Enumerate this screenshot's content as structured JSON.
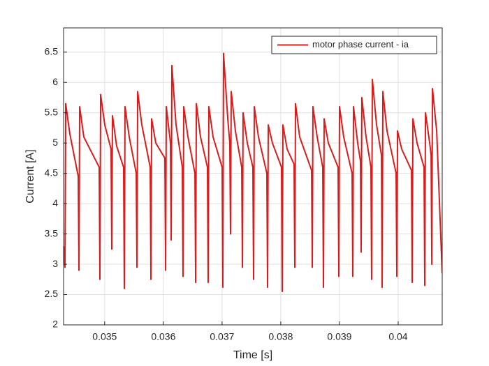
{
  "chart_data": {
    "type": "line",
    "xlabel": "Time [s]",
    "ylabel": "Current [A]",
    "x": [
      0.0343,
      0.034324,
      0.034336,
      0.034407,
      0.03455,
      0.034562,
      0.034574,
      0.034645,
      0.034907,
      0.034919,
      0.034931,
      0.035002,
      0.035109,
      0.035121,
      0.035133,
      0.035204,
      0.035323,
      0.035335,
      0.035347,
      0.035419,
      0.035538,
      0.03555,
      0.035562,
      0.035633,
      0.035776,
      0.035788,
      0.0358,
      0.035871,
      0.036026,
      0.036038,
      0.03605,
      0.036121,
      0.036133,
      0.036145,
      0.036216,
      0.036323,
      0.036335,
      0.036347,
      0.036419,
      0.036538,
      0.03655,
      0.036562,
      0.036633,
      0.036751,
      0.036763,
      0.036775,
      0.036847,
      0.037001,
      0.037013,
      0.037025,
      0.037097,
      0.037132,
      0.037144,
      0.037156,
      0.037227,
      0.037335,
      0.037347,
      0.037358,
      0.03743,
      0.037525,
      0.037537,
      0.037549,
      0.03762,
      0.037763,
      0.037775,
      0.037787,
      0.037858,
      0.038013,
      0.038025,
      0.038037,
      0.038108,
      0.038227,
      0.038239,
      0.038251,
      0.038322,
      0.038525,
      0.038537,
      0.038548,
      0.03862,
      0.038715,
      0.038727,
      0.038739,
      0.03881,
      0.038977,
      0.038989,
      0.039001,
      0.039072,
      0.039215,
      0.039227,
      0.039239,
      0.03931,
      0.039358,
      0.039369,
      0.039381,
      0.039453,
      0.039536,
      0.039548,
      0.03956,
      0.039632,
      0.039715,
      0.039727,
      0.039739,
      0.03981,
      0.039965,
      0.039977,
      0.039989,
      0.04006,
      0.040227,
      0.040239,
      0.040251,
      0.040322,
      0.040441,
      0.040453,
      0.040465,
      0.040537,
      0.040561,
      0.040573,
      0.040584,
      0.040656,
      0.04075
    ],
    "series": [
      {
        "name": "motor phase current - ia",
        "color": "#d91c1c",
        "values": [
          3.3,
          2.95,
          5.65,
          5.15,
          4.45,
          2.9,
          5.6,
          5.1,
          4.6,
          2.75,
          5.8,
          5.3,
          4.9,
          3.25,
          5.45,
          4.95,
          4.6,
          2.6,
          5.6,
          5.1,
          4.5,
          2.95,
          5.85,
          5.3,
          4.6,
          2.75,
          5.4,
          5.0,
          4.75,
          2.9,
          5.6,
          5.0,
          3.4,
          6.28,
          5.3,
          4.6,
          2.8,
          5.6,
          5.1,
          4.5,
          2.7,
          5.65,
          5.1,
          4.6,
          2.7,
          5.6,
          5.1,
          4.6,
          2.62,
          6.48,
          5.4,
          5.0,
          3.5,
          5.85,
          5.2,
          4.6,
          2.95,
          5.5,
          5.0,
          4.6,
          2.75,
          5.6,
          5.1,
          4.5,
          2.62,
          5.3,
          5.0,
          4.6,
          2.55,
          5.3,
          4.9,
          4.65,
          2.95,
          5.65,
          5.1,
          4.55,
          2.95,
          5.6,
          5.1,
          4.6,
          2.62,
          5.4,
          5.0,
          4.6,
          2.8,
          5.6,
          5.1,
          4.5,
          2.8,
          5.6,
          5.0,
          4.7,
          3.2,
          5.75,
          5.1,
          4.6,
          2.75,
          6.05,
          5.3,
          4.8,
          2.62,
          5.85,
          5.2,
          4.5,
          2.8,
          5.2,
          4.9,
          4.55,
          2.7,
          5.4,
          5.0,
          4.6,
          2.65,
          5.5,
          5.0,
          4.8,
          3.0,
          5.9,
          5.2,
          2.85
        ]
      }
    ],
    "xlim": [
      0.0343,
      0.04075
    ],
    "ylim": [
      2,
      6.9
    ],
    "xticks": [
      0.035,
      0.036,
      0.037,
      0.038,
      0.039,
      0.04
    ],
    "yticks": [
      2,
      2.5,
      3,
      3.5,
      4,
      4.5,
      5,
      5.5,
      6,
      6.5
    ],
    "grid": true,
    "legend": "northeast"
  }
}
